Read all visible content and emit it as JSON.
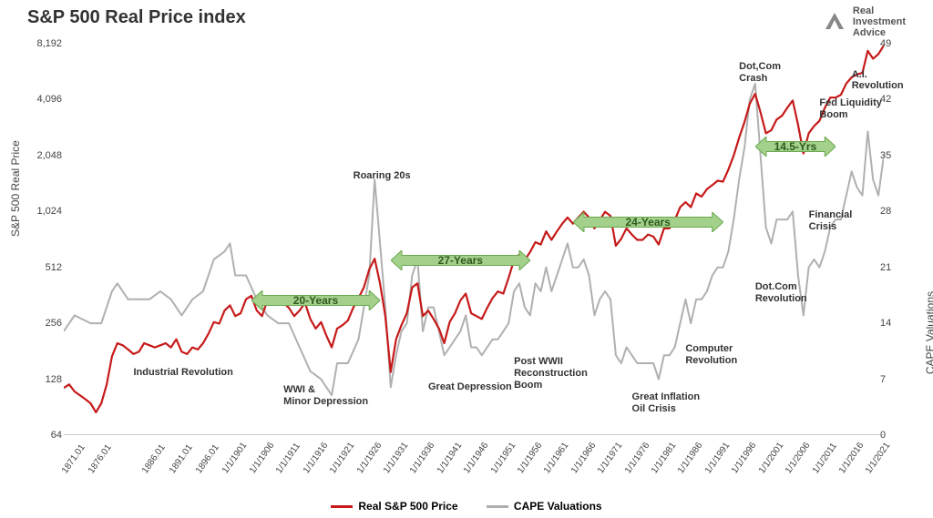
{
  "title": "S&P 500 Real Price index",
  "logo": {
    "line1": "Real",
    "line2": "Investment",
    "line3": "Advice"
  },
  "y_left": {
    "label": "S&P 500 Real Price",
    "scale": "log2",
    "min": 64,
    "max": 8192,
    "ticks": [
      64,
      128,
      256,
      512,
      1024,
      2048,
      4096,
      8192
    ]
  },
  "y_right": {
    "label": "CAPE Valuations",
    "scale": "linear",
    "min": 0,
    "max": 49,
    "ticks": [
      0,
      7,
      14,
      21,
      28,
      35,
      42,
      49
    ]
  },
  "x": {
    "min": 1871,
    "max": 2024,
    "labels": [
      "1871.01",
      "1876.01",
      "1886.01",
      "1891.01",
      "1896.01",
      "1/1/1901",
      "1/1/1906",
      "1/1/1911",
      "1/1/1916",
      "1/1/1921",
      "1/1/1926",
      "1/1/1931",
      "1/1/1936",
      "1/1/1941",
      "1/1/1946",
      "1/1/1951",
      "1/1/1956",
      "1/1/1961",
      "1/1/1966",
      "1/1/1971",
      "1/1/1976",
      "1/1/1981",
      "1/1/1986",
      "1/1/1991",
      "1/1/1996",
      "1/1/2001",
      "1/1/2006",
      "1/1/2011",
      "1/1/2016",
      "1/1/2021"
    ],
    "label_years": [
      1871,
      1876,
      1886,
      1891,
      1896,
      1901,
      1906,
      1911,
      1916,
      1921,
      1926,
      1931,
      1936,
      1941,
      1946,
      1951,
      1956,
      1961,
      1966,
      1971,
      1976,
      1981,
      1986,
      1991,
      1996,
      2001,
      2006,
      2011,
      2016,
      2021
    ]
  },
  "colors": {
    "price": "#c61a1a",
    "cape": "#b0b0b0",
    "bg": "#ffffff",
    "text": "#333333",
    "arrow_fill": "#a3d08a",
    "arrow_stroke": "#6aa84f",
    "arrow_text": "#2e5a1f"
  },
  "line_width": {
    "price": 2.2,
    "cape": 2.0
  },
  "legend": [
    {
      "label": "Real S&P 500 Price",
      "color_key": "price"
    },
    {
      "label": "CAPE Valuations",
      "color_key": "cape"
    }
  ],
  "annotations": [
    {
      "text": "Industrial Revolution",
      "year": 1884,
      "y_left_val": 150
    },
    {
      "text": "WWI &\nMinor Depression",
      "year": 1912,
      "y_left_val": 120
    },
    {
      "text": "Roaring 20s",
      "year": 1925,
      "y_left_val": 1700
    },
    {
      "text": "Great Depression",
      "year": 1939,
      "y_left_val": 125
    },
    {
      "text": "Post WWII\nReconstruction\nBoom",
      "year": 1955,
      "y_left_val": 170
    },
    {
      "text": "Great Inflation\nOil Crisis",
      "year": 1977,
      "y_left_val": 110
    },
    {
      "text": "Computer\nRevolution",
      "year": 1987,
      "y_left_val": 200
    },
    {
      "text": "Dot.Com\nRevolution",
      "year": 2000,
      "y_left_val": 430
    },
    {
      "text": "Dot,Com\nCrash",
      "year": 1997,
      "y_left_val": 6600
    },
    {
      "text": "Financial\nCrisis",
      "year": 2010,
      "y_left_val": 1050
    },
    {
      "text": "Fed Liquidity\nBoom",
      "year": 2012,
      "y_left_val": 4200
    },
    {
      "text": "A.I.\nRevolution",
      "year": 2018,
      "y_left_val": 6000
    }
  ],
  "arrows": [
    {
      "label": "20-Years",
      "year_start": 1906,
      "year_end": 1930,
      "y_left_val": 340
    },
    {
      "label": "27-Years",
      "year_start": 1932,
      "year_end": 1958,
      "y_left_val": 560
    },
    {
      "label": "24-Years",
      "year_start": 1966,
      "year_end": 1994,
      "y_left_val": 900
    },
    {
      "label": "14.5-Yrs",
      "year_start": 2000,
      "year_end": 2015,
      "y_left_val": 2300
    }
  ],
  "series": {
    "price": [
      [
        1871,
        115
      ],
      [
        1872,
        120
      ],
      [
        1873,
        110
      ],
      [
        1874,
        105
      ],
      [
        1875,
        100
      ],
      [
        1876,
        95
      ],
      [
        1877,
        85
      ],
      [
        1878,
        95
      ],
      [
        1879,
        120
      ],
      [
        1880,
        170
      ],
      [
        1881,
        200
      ],
      [
        1882,
        195
      ],
      [
        1883,
        185
      ],
      [
        1884,
        175
      ],
      [
        1885,
        180
      ],
      [
        1886,
        200
      ],
      [
        1887,
        195
      ],
      [
        1888,
        190
      ],
      [
        1889,
        195
      ],
      [
        1890,
        200
      ],
      [
        1891,
        190
      ],
      [
        1892,
        210
      ],
      [
        1893,
        180
      ],
      [
        1894,
        175
      ],
      [
        1895,
        190
      ],
      [
        1896,
        185
      ],
      [
        1897,
        200
      ],
      [
        1898,
        225
      ],
      [
        1899,
        260
      ],
      [
        1900,
        255
      ],
      [
        1901,
        300
      ],
      [
        1902,
        320
      ],
      [
        1903,
        280
      ],
      [
        1904,
        290
      ],
      [
        1905,
        345
      ],
      [
        1906,
        360
      ],
      [
        1907,
        300
      ],
      [
        1908,
        280
      ],
      [
        1909,
        340
      ],
      [
        1910,
        330
      ],
      [
        1911,
        325
      ],
      [
        1912,
        330
      ],
      [
        1913,
        310
      ],
      [
        1914,
        280
      ],
      [
        1915,
        300
      ],
      [
        1916,
        330
      ],
      [
        1917,
        270
      ],
      [
        1918,
        240
      ],
      [
        1919,
        260
      ],
      [
        1920,
        220
      ],
      [
        1921,
        190
      ],
      [
        1922,
        240
      ],
      [
        1923,
        250
      ],
      [
        1924,
        265
      ],
      [
        1925,
        310
      ],
      [
        1926,
        350
      ],
      [
        1927,
        400
      ],
      [
        1928,
        500
      ],
      [
        1929,
        570
      ],
      [
        1930,
        420
      ],
      [
        1931,
        280
      ],
      [
        1932,
        140
      ],
      [
        1933,
        210
      ],
      [
        1934,
        250
      ],
      [
        1935,
        290
      ],
      [
        1936,
        400
      ],
      [
        1937,
        420
      ],
      [
        1938,
        280
      ],
      [
        1939,
        300
      ],
      [
        1940,
        270
      ],
      [
        1941,
        240
      ],
      [
        1942,
        200
      ],
      [
        1943,
        260
      ],
      [
        1944,
        290
      ],
      [
        1945,
        340
      ],
      [
        1946,
        370
      ],
      [
        1947,
        290
      ],
      [
        1948,
        280
      ],
      [
        1949,
        270
      ],
      [
        1950,
        310
      ],
      [
        1951,
        350
      ],
      [
        1952,
        380
      ],
      [
        1953,
        370
      ],
      [
        1954,
        450
      ],
      [
        1955,
        560
      ],
      [
        1956,
        600
      ],
      [
        1957,
        560
      ],
      [
        1958,
        620
      ],
      [
        1959,
        700
      ],
      [
        1960,
        680
      ],
      [
        1961,
        800
      ],
      [
        1962,
        720
      ],
      [
        1963,
        800
      ],
      [
        1964,
        880
      ],
      [
        1965,
        950
      ],
      [
        1966,
        880
      ],
      [
        1967,
        950
      ],
      [
        1968,
        1020
      ],
      [
        1969,
        950
      ],
      [
        1970,
        830
      ],
      [
        1971,
        920
      ],
      [
        1972,
        1020
      ],
      [
        1973,
        970
      ],
      [
        1974,
        670
      ],
      [
        1975,
        730
      ],
      [
        1976,
        830
      ],
      [
        1977,
        770
      ],
      [
        1978,
        720
      ],
      [
        1979,
        720
      ],
      [
        1980,
        770
      ],
      [
        1981,
        750
      ],
      [
        1982,
        680
      ],
      [
        1983,
        830
      ],
      [
        1984,
        830
      ],
      [
        1985,
        920
      ],
      [
        1986,
        1080
      ],
      [
        1987,
        1150
      ],
      [
        1988,
        1080
      ],
      [
        1989,
        1280
      ],
      [
        1990,
        1230
      ],
      [
        1991,
        1350
      ],
      [
        1992,
        1420
      ],
      [
        1993,
        1500
      ],
      [
        1994,
        1480
      ],
      [
        1995,
        1720
      ],
      [
        1996,
        2050
      ],
      [
        1997,
        2550
      ],
      [
        1998,
        3100
      ],
      [
        1999,
        3900
      ],
      [
        2000,
        4400
      ],
      [
        2001,
        3500
      ],
      [
        2002,
        2700
      ],
      [
        2003,
        2800
      ],
      [
        2004,
        3200
      ],
      [
        2005,
        3350
      ],
      [
        2006,
        3700
      ],
      [
        2007,
        4050
      ],
      [
        2008,
        3000
      ],
      [
        2009,
        2100
      ],
      [
        2010,
        2700
      ],
      [
        2011,
        2950
      ],
      [
        2012,
        3150
      ],
      [
        2013,
        3700
      ],
      [
        2014,
        4200
      ],
      [
        2015,
        4200
      ],
      [
        2016,
        4350
      ],
      [
        2017,
        5000
      ],
      [
        2018,
        5400
      ],
      [
        2019,
        5600
      ],
      [
        2020,
        5700
      ],
      [
        2021,
        7500
      ],
      [
        2022,
        6800
      ],
      [
        2023,
        7200
      ],
      [
        2024,
        8000
      ]
    ],
    "cape": [
      [
        1871,
        13
      ],
      [
        1873,
        15
      ],
      [
        1876,
        14
      ],
      [
        1878,
        14
      ],
      [
        1880,
        18
      ],
      [
        1881,
        19
      ],
      [
        1883,
        17
      ],
      [
        1885,
        17
      ],
      [
        1887,
        17
      ],
      [
        1889,
        18
      ],
      [
        1891,
        17
      ],
      [
        1893,
        15
      ],
      [
        1895,
        17
      ],
      [
        1897,
        18
      ],
      [
        1899,
        22
      ],
      [
        1901,
        23
      ],
      [
        1902,
        24
      ],
      [
        1903,
        20
      ],
      [
        1905,
        20
      ],
      [
        1907,
        17
      ],
      [
        1909,
        15
      ],
      [
        1911,
        14
      ],
      [
        1913,
        14
      ],
      [
        1915,
        11
      ],
      [
        1917,
        8
      ],
      [
        1919,
        7
      ],
      [
        1920,
        6
      ],
      [
        1921,
        5
      ],
      [
        1922,
        9
      ],
      [
        1924,
        9
      ],
      [
        1926,
        12
      ],
      [
        1928,
        20
      ],
      [
        1929,
        32
      ],
      [
        1930,
        24
      ],
      [
        1931,
        16
      ],
      [
        1932,
        6
      ],
      [
        1933,
        10
      ],
      [
        1934,
        13
      ],
      [
        1935,
        14
      ],
      [
        1936,
        20
      ],
      [
        1937,
        22
      ],
      [
        1938,
        13
      ],
      [
        1939,
        16
      ],
      [
        1940,
        16
      ],
      [
        1941,
        13
      ],
      [
        1942,
        10
      ],
      [
        1943,
        11
      ],
      [
        1944,
        12
      ],
      [
        1945,
        13
      ],
      [
        1946,
        15
      ],
      [
        1947,
        11
      ],
      [
        1948,
        11
      ],
      [
        1949,
        10
      ],
      [
        1950,
        11
      ],
      [
        1951,
        12
      ],
      [
        1952,
        12
      ],
      [
        1953,
        13
      ],
      [
        1954,
        14
      ],
      [
        1955,
        18
      ],
      [
        1956,
        19
      ],
      [
        1957,
        16
      ],
      [
        1958,
        15
      ],
      [
        1959,
        19
      ],
      [
        1960,
        18
      ],
      [
        1961,
        21
      ],
      [
        1962,
        18
      ],
      [
        1963,
        20
      ],
      [
        1964,
        22
      ],
      [
        1965,
        24
      ],
      [
        1966,
        21
      ],
      [
        1967,
        21
      ],
      [
        1968,
        22
      ],
      [
        1969,
        20
      ],
      [
        1970,
        15
      ],
      [
        1971,
        17
      ],
      [
        1972,
        18
      ],
      [
        1973,
        17
      ],
      [
        1974,
        10
      ],
      [
        1975,
        9
      ],
      [
        1976,
        11
      ],
      [
        1977,
        10
      ],
      [
        1978,
        9
      ],
      [
        1979,
        9
      ],
      [
        1980,
        9
      ],
      [
        1981,
        9
      ],
      [
        1982,
        7
      ],
      [
        1983,
        10
      ],
      [
        1984,
        10
      ],
      [
        1985,
        11
      ],
      [
        1986,
        14
      ],
      [
        1987,
        17
      ],
      [
        1988,
        14
      ],
      [
        1989,
        17
      ],
      [
        1990,
        17
      ],
      [
        1991,
        18
      ],
      [
        1992,
        20
      ],
      [
        1993,
        21
      ],
      [
        1994,
        21
      ],
      [
        1995,
        23
      ],
      [
        1996,
        27
      ],
      [
        1997,
        32
      ],
      [
        1998,
        36
      ],
      [
        1999,
        42
      ],
      [
        2000,
        44
      ],
      [
        2001,
        35
      ],
      [
        2002,
        26
      ],
      [
        2003,
        24
      ],
      [
        2004,
        27
      ],
      [
        2005,
        27
      ],
      [
        2006,
        27
      ],
      [
        2007,
        28
      ],
      [
        2008,
        20
      ],
      [
        2009,
        15
      ],
      [
        2010,
        21
      ],
      [
        2011,
        22
      ],
      [
        2012,
        21
      ],
      [
        2013,
        23
      ],
      [
        2014,
        26
      ],
      [
        2015,
        27
      ],
      [
        2016,
        27
      ],
      [
        2017,
        30
      ],
      [
        2018,
        33
      ],
      [
        2019,
        31
      ],
      [
        2020,
        30
      ],
      [
        2021,
        38
      ],
      [
        2022,
        32
      ],
      [
        2023,
        30
      ],
      [
        2024,
        35
      ]
    ]
  }
}
